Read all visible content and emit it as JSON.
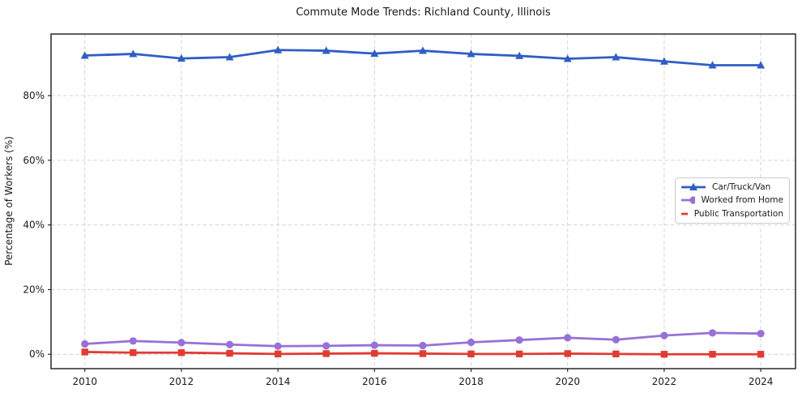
{
  "chart_data": {
    "type": "line",
    "title": "Commute Mode Trends: Richland County, Illinois",
    "xlabel": "",
    "ylabel": "Percentage of Workers (%)",
    "x": [
      2010,
      2011,
      2012,
      2013,
      2014,
      2015,
      2016,
      2017,
      2018,
      2019,
      2020,
      2021,
      2022,
      2023,
      2024
    ],
    "series": [
      {
        "name": "Car/Truck/Van",
        "marker": "triangle",
        "color": "#2f5ec4",
        "values": [
          92.4,
          92.9,
          91.5,
          91.9,
          94.1,
          93.9,
          93.0,
          93.9,
          92.9,
          92.3,
          91.4,
          91.9,
          90.6,
          89.4,
          89.4
        ]
      },
      {
        "name": "Worked from Home",
        "marker": "circle",
        "color": "#9771d6",
        "values": [
          3.2,
          4.1,
          3.6,
          3.0,
          2.5,
          2.6,
          2.8,
          2.7,
          3.7,
          4.4,
          5.1,
          4.5,
          5.8,
          6.6,
          6.4
        ]
      },
      {
        "name": "Public Transportation",
        "marker": "square",
        "color": "#e13b34",
        "values": [
          0.7,
          0.5,
          0.5,
          0.3,
          0.1,
          0.2,
          0.3,
          0.2,
          0.1,
          0.1,
          0.2,
          0.1,
          0.0,
          0.0,
          0.0
        ]
      }
    ],
    "xticks": {
      "values": [
        2010,
        2012,
        2014,
        2016,
        2018,
        2020,
        2022,
        2024
      ],
      "labels": [
        "2010",
        "2012",
        "2014",
        "2016",
        "2018",
        "2020",
        "2022",
        "2024"
      ]
    },
    "yticks": {
      "values": [
        0,
        20,
        40,
        60,
        80
      ],
      "labels": [
        "0%",
        "20%",
        "40%",
        "60%",
        "80%"
      ]
    },
    "xlim": [
      2009.3,
      2024.72
    ],
    "ylim": [
      -4.45,
      99.05
    ],
    "grid": true,
    "grid_style": "dashed",
    "legend_position": "center-right",
    "colors": {
      "grid": "#d4d4d4",
      "spine": "#1a1a1a",
      "text": "#1a1a1a",
      "background": "#ffffff",
      "legend_border": "#cccccc"
    }
  }
}
